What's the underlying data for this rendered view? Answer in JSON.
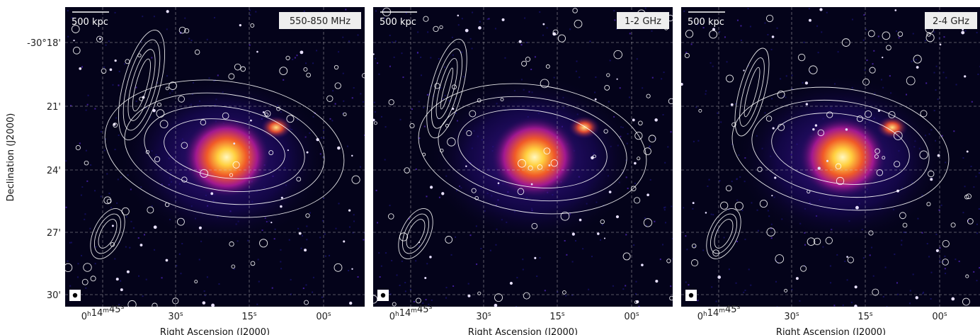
{
  "y_axis": {
    "label": "Declination (J2000)",
    "ticks": [
      "-30°18'",
      "21'",
      "24'",
      "27'",
      "30'"
    ]
  },
  "panels": [
    {
      "band": "550-850 MHz",
      "scale_bar": "500 kpc",
      "x_axis": {
        "label": "Right Ascension (J2000)",
        "ticks": [
          [
            [
              "0",
              "h"
            ],
            [
              "14",
              "m"
            ],
            [
              "45",
              "s"
            ]
          ],
          [
            [
              "30",
              "s"
            ]
          ],
          [
            [
              "15",
              "s"
            ]
          ],
          [
            [
              "00",
              "s"
            ]
          ]
        ]
      }
    },
    {
      "band": "1-2 GHz",
      "scale_bar": "500 kpc",
      "x_axis": {
        "label": "Right Ascension (J2000)",
        "ticks": [
          [
            [
              "0",
              "h"
            ],
            [
              "14",
              "m"
            ],
            [
              "45",
              "s"
            ]
          ],
          [
            [
              "30",
              "s"
            ]
          ],
          [
            [
              "15",
              "s"
            ]
          ],
          [
            [
              "00",
              "s"
            ]
          ]
        ]
      }
    },
    {
      "band": "2-4 GHz",
      "scale_bar": "500 kpc",
      "x_axis": {
        "label": "Right Ascension (J2000)",
        "ticks": [
          [
            [
              "0",
              "h"
            ],
            [
              "14",
              "m"
            ],
            [
              "45",
              "s"
            ]
          ],
          [
            [
              "30",
              "s"
            ]
          ],
          [
            [
              "15",
              "s"
            ]
          ],
          [
            [
              "00",
              "s"
            ]
          ]
        ]
      }
    }
  ]
}
